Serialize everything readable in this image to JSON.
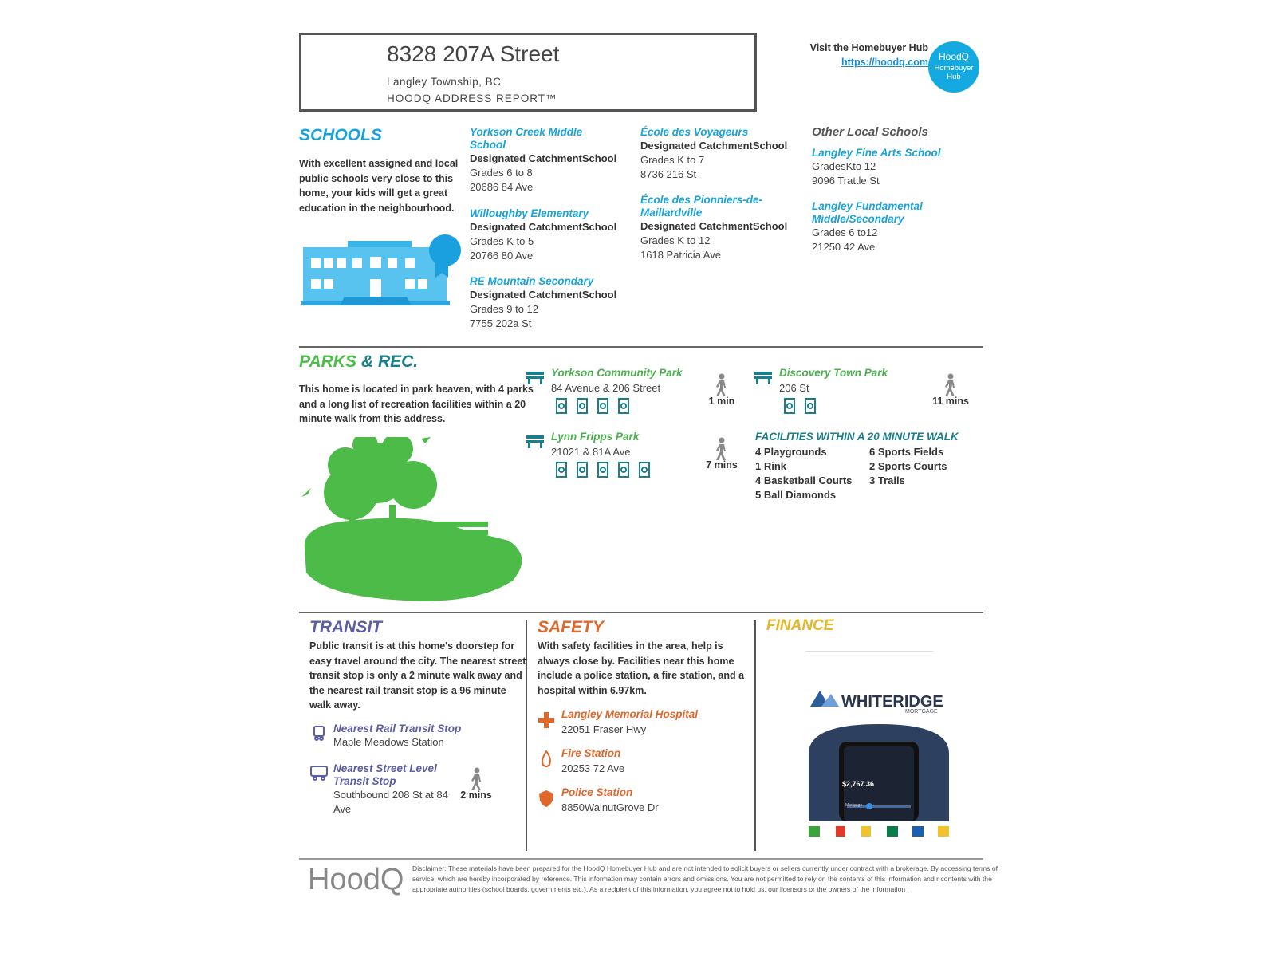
{
  "header": {
    "address": "8328 207A Street",
    "city": "Langley Township, BC",
    "report_label": "HOODQ ADDRESS REPORT™",
    "hub_prompt": "Visit the Homebuyer Hub",
    "hub_url": "https://hoodq.com",
    "hub_badge": [
      "HoodQ",
      "Homebuyer",
      "Hub"
    ]
  },
  "schools": {
    "title": "SCHOOLS",
    "description": "With excellent assigned and local public schools very close to this home, your kids will get a great education in the neighbourhood.",
    "catchment": [
      {
        "name": "Yorkson Creek Middle School",
        "type": "Designated CatchmentSchool",
        "grades": "Grades 6 to 8",
        "address": "20686 84 Ave"
      },
      {
        "name": "Willoughby Elementary",
        "type": "Designated CatchmentSchool",
        "grades": "Grades K to 5",
        "address": "20766 80 Ave"
      },
      {
        "name": "RE Mountain Secondary",
        "type": "Designated CatchmentSchool",
        "grades": "Grades 9 to 12",
        "address": "7755 202a St"
      },
      {
        "name": "École des Voyageurs",
        "type": "Designated CatchmentSchool",
        "grades": "Grades K to 7",
        "address": "8736 216 St"
      },
      {
        "name": "École des Pionniers-de-Maillardville",
        "type": "Designated CatchmentSchool",
        "grades": "Grades K to 12",
        "address": "1618 Patricia Ave"
      }
    ],
    "other_title": "Other Local Schools",
    "other": [
      {
        "name": "Langley Fine Arts School",
        "grades": "GradesKto 12",
        "address": "9096 Trattle St"
      },
      {
        "name": "Langley Fundamental Middle/Secondary",
        "grades": "Grades 6 to12",
        "address": "21250 42 Ave"
      }
    ]
  },
  "parks": {
    "title": [
      "PARKS",
      "& REC."
    ],
    "description": "This home is located in park heaven, with 4 parks and a long list of recreation facilities within a 20 minute walk from this address.",
    "parks": [
      {
        "name": "Yorkson Community Park",
        "address": "84 Avenue & 206 Street",
        "walk_time": "1 min"
      },
      {
        "name": "Lynn Fripps Park",
        "address": "21021 & 81A Ave",
        "walk_time": "7 mins"
      },
      {
        "name": "Discovery Town Park",
        "address": "206 St",
        "walk_time": "11 mins"
      }
    ],
    "facilities_title": "FACILITIES WITHIN A 20 MINUTE WALK",
    "facilities": [
      "4 Playgrounds",
      "6 Sports Fields",
      "1 Rink",
      "2 Sports Courts",
      "4 Basketball Courts",
      "3 Trails",
      "5 Ball Diamonds"
    ]
  },
  "transit": {
    "title": "TRANSIT",
    "description": "Public transit is at this home's doorstep for easy travel around the city. The nearest street transit stop is only a 2 minute walk away and the nearest rail transit stop is a 96 minute walk away.",
    "stops": [
      {
        "label": "Nearest Rail Transit Stop",
        "name": "Maple Meadows Station"
      },
      {
        "label": "Nearest Street Level Transit Stop",
        "name": "Southbound 208 St at 84 Ave",
        "walk_time": "2 mins"
      }
    ]
  },
  "safety": {
    "title": "SAFETY",
    "description": "With safety facilities in the area, help is always close by. Facilities near this home include a police station, a fire station, and a hospital within 6.97km.",
    "facilities": [
      {
        "name": "Langley Memorial Hospital",
        "address": "22051 Fraser Hwy"
      },
      {
        "name": "Fire Station",
        "address": "20253 72 Ave"
      },
      {
        "name": "Police Station",
        "address": "8850WalnutGrove Dr"
      }
    ]
  },
  "finance": {
    "title": "FINANCE",
    "brand": "WHITERIDGE",
    "brand_sub": "MORTGAGE",
    "app_amount": "$2,767.36",
    "app_label": "Mortgage"
  },
  "footer": {
    "logo": "HoodQ",
    "disclaimer": "Disclaimer: These materials have been prepared for the HoodQ Homebuyer Hub and are not intended to solicit buyers or sellers currently under contract with a brokerage. By accessing terms of service, which are hereby incorporated by reference. This information may contain errors and omissions. You are not permitted to rely on the contents of this information and r contents with the appropriate authorities (school boards, governments etc.). As a recipient of this information, you agree not to hold us, our licensors or the owners of the information l"
  }
}
